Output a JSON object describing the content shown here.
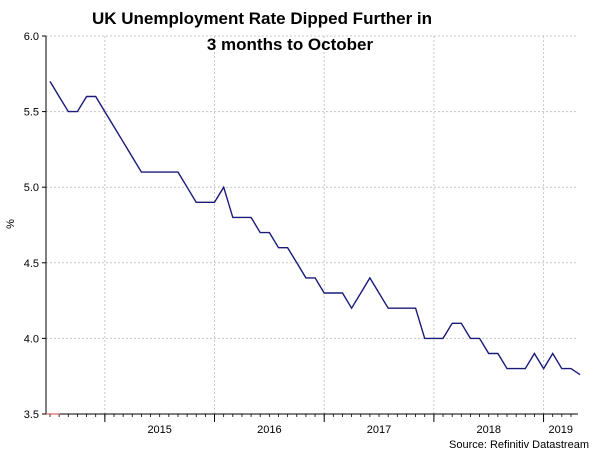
{
  "chart_data": {
    "type": "line",
    "title_lines": [
      "UK Unemployment Rate Dipped Further in",
      "3 months to October"
    ],
    "ylabel": "%",
    "xlabel": "",
    "source": "Source: Refinitiv Datastream",
    "ylim": [
      3.5,
      6.0
    ],
    "y_ticks": [
      "3.5",
      "4.0",
      "4.5",
      "5.0",
      "5.5",
      "6.0"
    ],
    "x_ticks": [
      "2015",
      "2016",
      "2017",
      "2018",
      "2019"
    ],
    "grid": true,
    "line_color": "#1a1a7a",
    "x_start": "2014-07",
    "series": [
      {
        "values": [
          5.7,
          5.6,
          5.5,
          5.5,
          5.6,
          5.6,
          5.5,
          5.4,
          5.3,
          5.2,
          5.1,
          5.1,
          5.1,
          5.1,
          5.1,
          5.0,
          4.9,
          4.9,
          4.9,
          5.0,
          4.8,
          4.8,
          4.8,
          4.7,
          4.7,
          4.6,
          4.6,
          4.5,
          4.4,
          4.4,
          4.3,
          4.3,
          4.3,
          4.2,
          4.3,
          4.4,
          4.3,
          4.2,
          4.2,
          4.2,
          4.2,
          4.0,
          4.0,
          4.0,
          4.1,
          4.1,
          4.0,
          4.0,
          3.9,
          3.9,
          3.8,
          3.8,
          3.8,
          3.9,
          3.8,
          3.9,
          3.8,
          3.8,
          3.76
        ]
      }
    ]
  }
}
